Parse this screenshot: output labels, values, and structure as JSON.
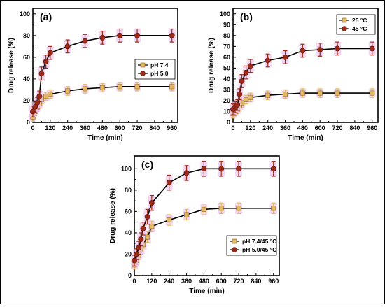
{
  "chart_data": [
    {
      "panel_label": "(a)",
      "type": "line",
      "xlabel": "Time (min)",
      "ylabel": "Drug release (%)",
      "xlim": [
        0,
        1000
      ],
      "ylim": [
        0,
        105
      ],
      "xticks": [
        0,
        120,
        240,
        360,
        480,
        600,
        720,
        840,
        960
      ],
      "yticks": [
        0,
        20,
        40,
        60,
        80,
        100
      ],
      "legend_position": "middle-right",
      "series": [
        {
          "name": "pH 7.4",
          "color": "#e3b862",
          "x": [
            0,
            15,
            30,
            45,
            60,
            90,
            120,
            240,
            360,
            480,
            600,
            720,
            960
          ],
          "y": [
            5,
            10,
            14,
            17,
            21,
            24,
            26,
            29,
            31,
            32,
            33,
            33,
            33
          ],
          "err": [
            4,
            4,
            4,
            4,
            4,
            4,
            4,
            4,
            4,
            4,
            4,
            4,
            4
          ]
        },
        {
          "name": "pH 5.0",
          "color": "#9b2a1a",
          "x": [
            0,
            15,
            30,
            45,
            60,
            90,
            120,
            240,
            360,
            480,
            600,
            720,
            960
          ],
          "y": [
            10,
            14,
            18,
            24,
            45,
            56,
            64,
            70,
            75,
            78,
            80,
            80,
            80
          ],
          "err": [
            5,
            5,
            5,
            5,
            6,
            6,
            6,
            6,
            6,
            6,
            6,
            6,
            6
          ]
        }
      ]
    },
    {
      "panel_label": "(b)",
      "type": "line",
      "xlabel": "Time (min)",
      "ylabel": "Drug release (%)",
      "xlim": [
        0,
        1000
      ],
      "ylim": [
        0,
        105
      ],
      "xticks": [
        0,
        120,
        240,
        360,
        480,
        600,
        720,
        840,
        960
      ],
      "yticks": [
        0,
        10,
        20,
        30,
        40,
        50,
        60,
        70,
        80,
        90,
        100
      ],
      "legend_position": "top-right",
      "series": [
        {
          "name": "25 °C",
          "color": "#e3b862",
          "x": [
            0,
            15,
            30,
            45,
            60,
            90,
            120,
            240,
            360,
            480,
            600,
            720,
            960
          ],
          "y": [
            8,
            10,
            12,
            15,
            18,
            21,
            23,
            25,
            26,
            27,
            27,
            27,
            27
          ],
          "err": [
            4,
            4,
            4,
            4,
            4,
            4,
            4,
            4,
            4,
            4,
            4,
            4,
            4
          ]
        },
        {
          "name": "45 °C",
          "color": "#9b2a1a",
          "x": [
            0,
            15,
            30,
            45,
            60,
            90,
            120,
            240,
            360,
            480,
            600,
            720,
            960
          ],
          "y": [
            12,
            14,
            16,
            26,
            38,
            46,
            52,
            57,
            60,
            66,
            67,
            68,
            68
          ],
          "err": [
            5,
            5,
            5,
            5,
            6,
            6,
            6,
            6,
            6,
            6,
            6,
            6,
            6
          ]
        }
      ]
    },
    {
      "panel_label": "(c)",
      "type": "line",
      "xlabel": "Time (min)",
      "ylabel": "Drug release (%)",
      "xlim": [
        0,
        1000
      ],
      "ylim": [
        0,
        112
      ],
      "xticks": [
        0,
        120,
        240,
        360,
        480,
        600,
        720,
        840,
        960
      ],
      "yticks": [
        0,
        20,
        40,
        60,
        80,
        100
      ],
      "legend_position": "bottom-right",
      "series": [
        {
          "name": "pH 7.4/45 °C",
          "color": "#e3b862",
          "x": [
            0,
            15,
            30,
            45,
            60,
            90,
            120,
            240,
            360,
            480,
            600,
            720,
            960
          ],
          "y": [
            10,
            14,
            19,
            25,
            29,
            36,
            46,
            52,
            57,
            62,
            63,
            63,
            63
          ],
          "err": [
            4,
            4,
            4,
            5,
            5,
            5,
            5,
            5,
            5,
            5,
            5,
            5,
            5
          ]
        },
        {
          "name": "pH 5.0/45 °C",
          "color": "#9b2a1a",
          "x": [
            0,
            15,
            30,
            45,
            60,
            90,
            120,
            240,
            360,
            480,
            600,
            720,
            960
          ],
          "y": [
            14,
            20,
            26,
            34,
            44,
            55,
            68,
            87,
            96,
            100,
            100,
            100,
            100
          ],
          "err": [
            5,
            5,
            6,
            6,
            6,
            7,
            7,
            7,
            7,
            7,
            7,
            7,
            7
          ]
        }
      ]
    }
  ]
}
